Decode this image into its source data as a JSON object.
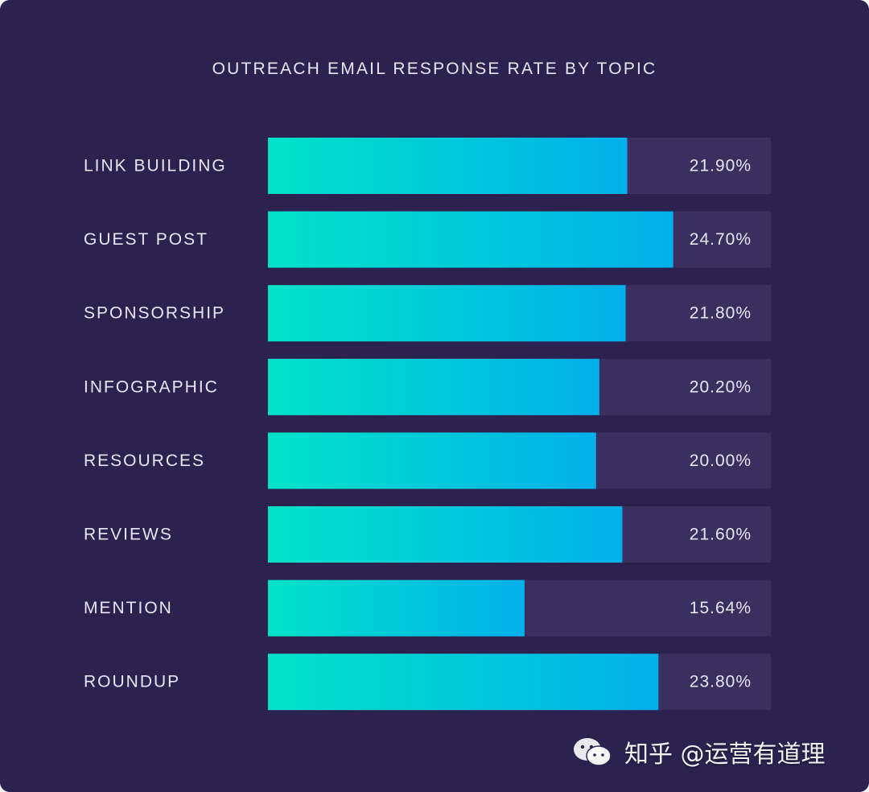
{
  "chart_data": {
    "type": "bar",
    "orientation": "horizontal",
    "title": "OUTREACH EMAIL RESPONSE RATE BY TOPIC",
    "categories": [
      "LINK BUILDING",
      "GUEST POST",
      "SPONSORSHIP",
      "INFOGRAPHIC",
      "RESOURCES",
      "REVIEWS",
      "MENTION",
      "ROUNDUP"
    ],
    "values": [
      21.9,
      24.7,
      21.8,
      20.2,
      20.0,
      21.6,
      15.64,
      23.8
    ],
    "value_labels": [
      "21.90%",
      "24.70%",
      "21.80%",
      "20.20%",
      "20.00%",
      "21.60%",
      "15.64%",
      "23.80%"
    ],
    "xlim": [
      0,
      30.65
    ],
    "grid": false,
    "legend": "none",
    "colors": {
      "background": "#2b2250",
      "track": "#3a3060",
      "bar_start": "#00e3c8",
      "bar_end": "#00b0ea",
      "text": "#e9e6f4"
    }
  },
  "watermark": {
    "text": "知乎 @运营有道理",
    "icon": "wechat-icon"
  }
}
